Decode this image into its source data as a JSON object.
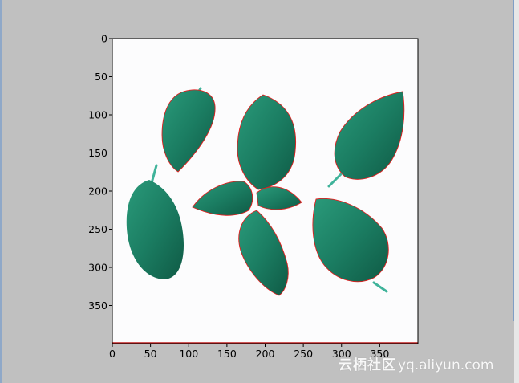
{
  "watermark": {
    "cn": "云栖社区",
    "url": "yq.aliyun.com"
  },
  "chart_data": {
    "type": "image",
    "title": "",
    "xlabel": "",
    "ylabel": "",
    "xlim": [
      0,
      400
    ],
    "ylim": [
      400,
      0
    ],
    "x_ticks": [
      0,
      50,
      100,
      150,
      200,
      250,
      300,
      350
    ],
    "y_ticks": [
      0,
      50,
      100,
      150,
      200,
      250,
      300,
      350
    ],
    "grid": false,
    "contour_color": "#e02020",
    "leaf_color": "#1c7d62"
  }
}
